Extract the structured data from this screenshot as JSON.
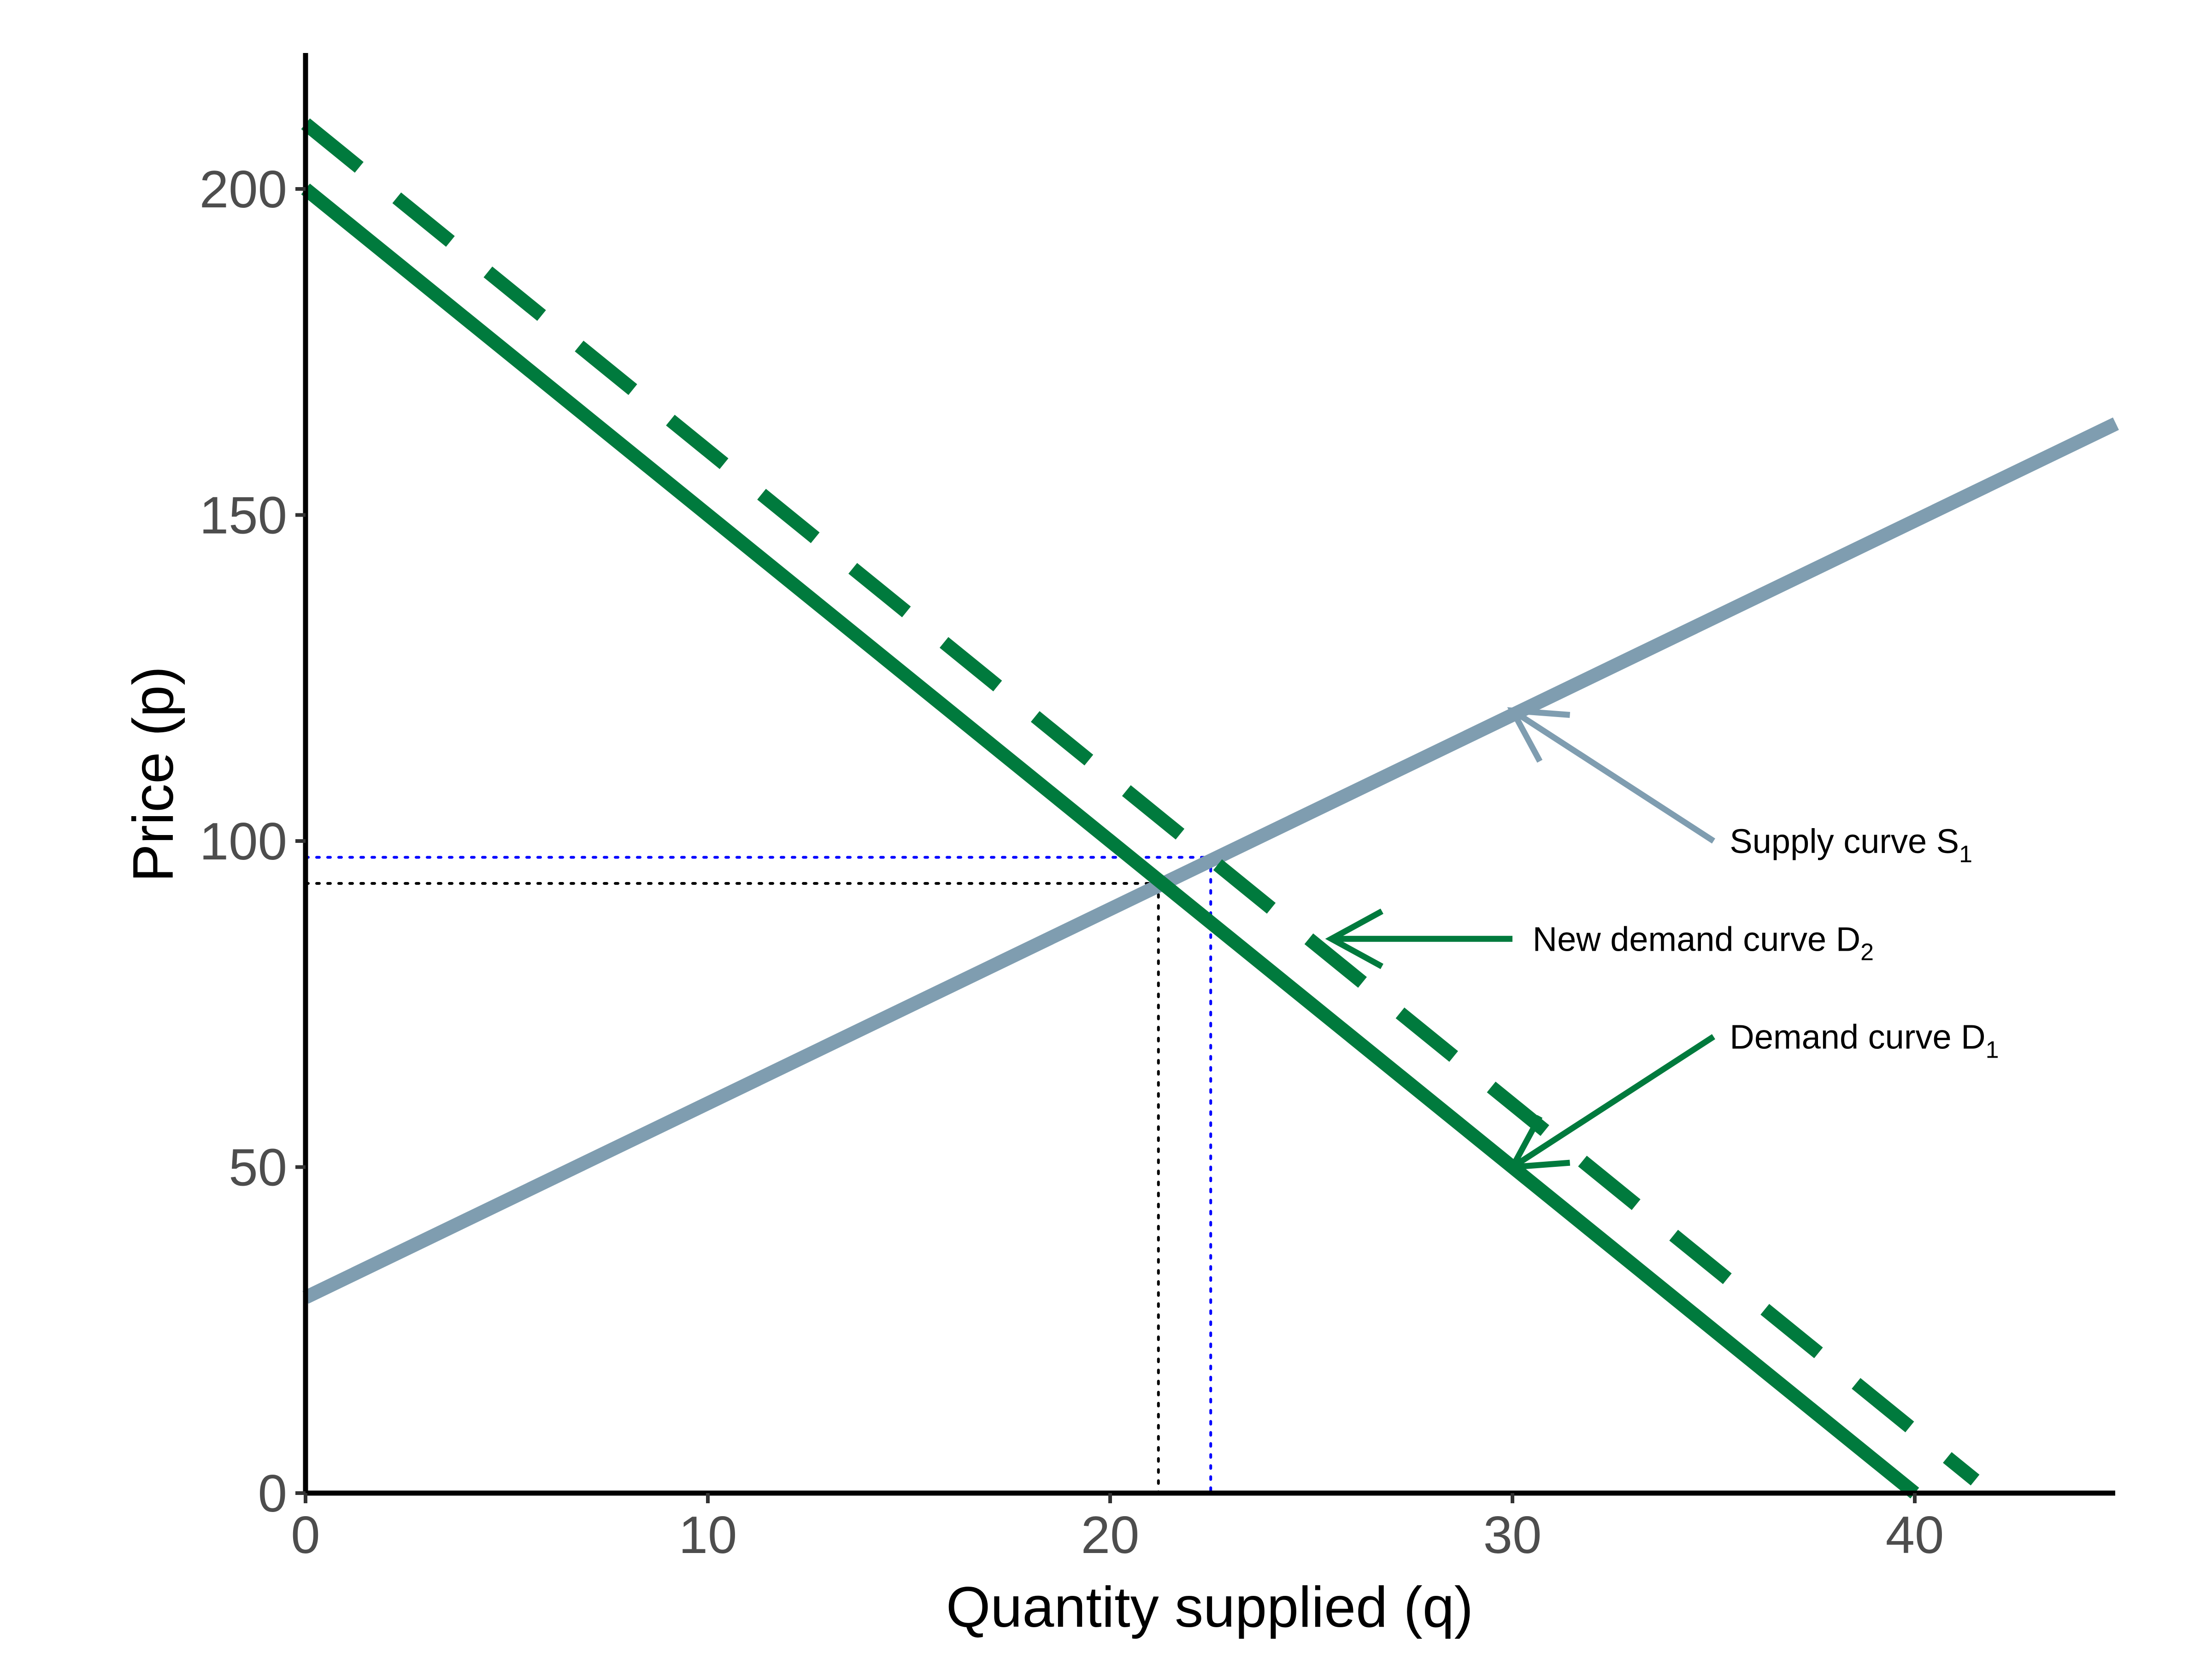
{
  "chart_data": {
    "type": "line",
    "xlabel": "Quantity supplied (q)",
    "ylabel": "Price (p)",
    "xlim": [
      0,
      45
    ],
    "ylim": [
      0,
      220
    ],
    "x_ticks": [
      0,
      10,
      20,
      30,
      40
    ],
    "y_ticks": [
      0,
      50,
      100,
      150,
      200
    ],
    "grid": false,
    "series": [
      {
        "name": "Supply curve S1",
        "style": "solid",
        "color": "#7f9db0",
        "x": [
          0,
          45
        ],
        "y": [
          30,
          164
        ]
      },
      {
        "name": "Demand curve D1",
        "style": "solid",
        "color": "#007a3d",
        "x": [
          0,
          40
        ],
        "y": [
          200,
          0
        ]
      },
      {
        "name": "New demand curve D2",
        "style": "dashed",
        "color": "#007a3d",
        "x": [
          0,
          41.5
        ],
        "y": [
          210,
          2
        ]
      }
    ],
    "reference_lines": [
      {
        "equilibrium": "D1",
        "q": 21.2,
        "p": 93.5,
        "color": "#000000",
        "style": "dotted"
      },
      {
        "equilibrium": "D2",
        "q": 22.5,
        "p": 97.5,
        "color": "#0000ff",
        "style": "dotted"
      }
    ],
    "annotations": [
      {
        "text": "Supply curve S",
        "subscript": "1",
        "text_at": [
          35.4,
          100
        ],
        "arrow_from": [
          35,
          100
        ],
        "arrow_to": [
          30,
          120
        ],
        "color": "#7f9db0"
      },
      {
        "text": "New demand curve D",
        "subscript": "2",
        "text_at": [
          30.5,
          85
        ],
        "arrow_from": [
          30,
          85
        ],
        "arrow_to": [
          25.5,
          85
        ],
        "color": "#007a3d"
      },
      {
        "text": "Demand curve D",
        "subscript": "1",
        "text_at": [
          35.4,
          70
        ],
        "arrow_from": [
          35,
          70
        ],
        "arrow_to": [
          30,
          50
        ],
        "color": "#007a3d"
      }
    ]
  }
}
